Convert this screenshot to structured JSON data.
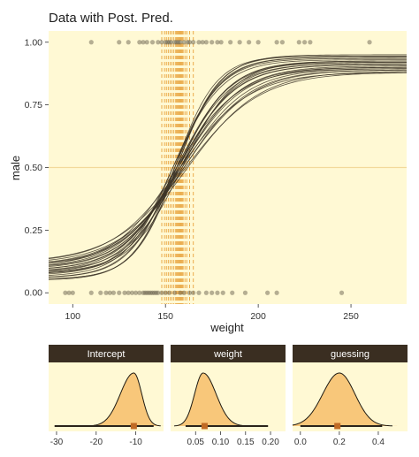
{
  "colors": {
    "panel_bg": "#fff9d4",
    "strip_bg": "#3a2e21",
    "strip_text": "#ffffff",
    "axis_text": "#333333",
    "curve": "#3d3528",
    "points": "#6b6450",
    "vlines": "#e8a23c",
    "hline": "#f2d99a",
    "density_fill": "#f8c77a",
    "density_line": "#1e1a12",
    "interval_line": "#2a231a",
    "median_box": "#c06a25"
  },
  "chart_data": [
    {
      "type": "scatter",
      "title": "Data with Post. Pred.",
      "xlabel": "weight",
      "ylabel": "male",
      "xlim": [
        87,
        280
      ],
      "ylim": [
        -0.045,
        1.045
      ],
      "x_ticks": [
        100,
        150,
        200,
        250
      ],
      "y_ticks": [
        0.0,
        0.25,
        0.5,
        0.75,
        1.0
      ],
      "y_tick_labels": [
        "0.00",
        "0.25",
        "0.50",
        "0.75",
        "1.00"
      ],
      "hline_y": 0.5,
      "grid": false,
      "points_male_1": [
        110,
        125,
        130,
        136,
        138,
        140,
        143,
        146,
        148,
        150,
        151,
        152,
        153,
        155,
        156,
        157,
        158,
        160,
        162,
        163,
        165,
        168,
        170,
        172,
        175,
        178,
        180,
        185,
        190,
        195,
        200,
        210,
        213,
        222,
        225,
        228,
        260
      ],
      "points_male_0": [
        96,
        98,
        100,
        110,
        115,
        118,
        120,
        122,
        125,
        128,
        130,
        132,
        134,
        136,
        138,
        139,
        140,
        141,
        142,
        143,
        144,
        145,
        146,
        148,
        150,
        152,
        155,
        158,
        160,
        163,
        165,
        168,
        172,
        175,
        178,
        181,
        186,
        193,
        205,
        210,
        245
      ],
      "posterior_curves": [
        {
          "b": 0.06,
          "c": 158,
          "g": 0.2
        },
        {
          "b": 0.07,
          "c": 156,
          "g": 0.16
        },
        {
          "b": 0.055,
          "c": 160,
          "g": 0.22
        },
        {
          "b": 0.08,
          "c": 155,
          "g": 0.12
        },
        {
          "b": 0.065,
          "c": 157,
          "g": 0.18
        },
        {
          "b": 0.075,
          "c": 154,
          "g": 0.14
        },
        {
          "b": 0.05,
          "c": 161,
          "g": 0.24
        },
        {
          "b": 0.085,
          "c": 156,
          "g": 0.1
        },
        {
          "b": 0.062,
          "c": 158,
          "g": 0.19
        },
        {
          "b": 0.072,
          "c": 157,
          "g": 0.15
        },
        {
          "b": 0.058,
          "c": 159,
          "g": 0.21
        },
        {
          "b": 0.09,
          "c": 155,
          "g": 0.11
        },
        {
          "b": 0.068,
          "c": 156,
          "g": 0.17
        },
        {
          "b": 0.052,
          "c": 162,
          "g": 0.23
        },
        {
          "b": 0.078,
          "c": 154,
          "g": 0.13
        },
        {
          "b": 0.063,
          "c": 158,
          "g": 0.2
        },
        {
          "b": 0.074,
          "c": 157,
          "g": 0.16
        },
        {
          "b": 0.057,
          "c": 160,
          "g": 0.22
        },
        {
          "b": 0.082,
          "c": 155,
          "g": 0.12
        },
        {
          "b": 0.066,
          "c": 157,
          "g": 0.18
        },
        {
          "b": 0.071,
          "c": 159,
          "g": 0.15
        },
        {
          "b": 0.06,
          "c": 156,
          "g": 0.21
        },
        {
          "b": 0.088,
          "c": 156,
          "g": 0.11
        },
        {
          "b": 0.054,
          "c": 158,
          "g": 0.24
        },
        {
          "b": 0.069,
          "c": 158,
          "g": 0.17
        }
      ],
      "vlines_x": [
        148,
        149.5,
        150.5,
        151.5,
        152.5,
        153.5,
        154.5,
        155.5,
        156,
        156.5,
        157,
        157.5,
        158,
        158.5,
        159,
        159.5,
        160.5,
        161.5,
        163,
        165
      ]
    },
    {
      "type": "area",
      "facet": "Intercept",
      "xlim": [
        -32,
        -3
      ],
      "x_ticks": [
        -30,
        -20,
        -10
      ],
      "x_tick_labels": [
        "-30",
        "-20",
        "-10"
      ],
      "density": {
        "mode": -10.5,
        "sd_left": 3.4,
        "sd_right": 2.0
      },
      "interval": [
        -30.5,
        -5.5
      ],
      "median": -10.5
    },
    {
      "type": "area",
      "facet": "weight",
      "xlim": [
        0.0,
        0.23
      ],
      "x_ticks": [
        0.05,
        0.1,
        0.15,
        0.2
      ],
      "x_tick_labels": [
        "0.05",
        "0.10",
        "0.15",
        "0.20"
      ],
      "density": {
        "mode": 0.065,
        "sd_left": 0.017,
        "sd_right": 0.026
      },
      "interval": [
        0.03,
        0.195
      ],
      "median": 0.068
    },
    {
      "type": "area",
      "facet": "guessing",
      "xlim": [
        -0.04,
        0.55
      ],
      "x_ticks": [
        0.0,
        0.2,
        0.4
      ],
      "x_tick_labels": [
        "0.0",
        "0.2",
        "0.4"
      ],
      "density": {
        "mode": 0.2,
        "sd_left": 0.085,
        "sd_right": 0.08
      },
      "interval": [
        0.0,
        0.42
      ],
      "median": 0.19
    }
  ]
}
